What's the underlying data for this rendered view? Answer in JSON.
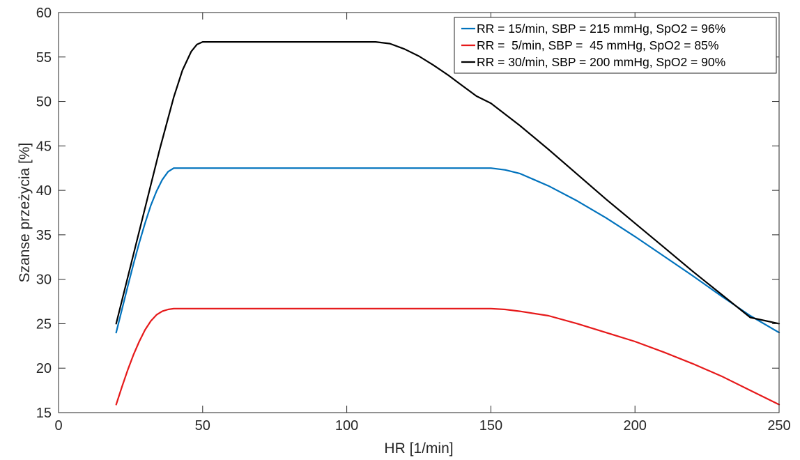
{
  "chart_data": {
    "type": "line",
    "title": "",
    "xlabel": "HR [1/min]",
    "ylabel": "Szanse przeżycia [%]",
    "xlim": [
      0,
      250
    ],
    "ylim": [
      15,
      60
    ],
    "xticks": [
      "0",
      "50",
      "100",
      "150",
      "200",
      "250"
    ],
    "yticks": [
      "15",
      "20",
      "25",
      "30",
      "35",
      "40",
      "45",
      "50",
      "55",
      "60"
    ],
    "grid": false,
    "legend_position": "top-right",
    "series": [
      {
        "name": "RR = 15/min, SBP = 215 mmHg, SpO2 = 96%",
        "color": "#0072BD",
        "x": [
          20,
          22,
          24,
          26,
          28,
          30,
          32,
          34,
          36,
          38,
          40,
          50,
          100,
          150,
          155,
          160,
          170,
          180,
          190,
          200,
          210,
          220,
          230,
          240,
          250
        ],
        "y": [
          24,
          26.6,
          29.2,
          31.7,
          34.1,
          36.3,
          38.3,
          39.9,
          41.2,
          42.1,
          42.5,
          42.5,
          42.5,
          42.5,
          42.3,
          41.9,
          40.5,
          38.8,
          36.9,
          34.8,
          32.6,
          30.4,
          28.1,
          25.9,
          24
        ]
      },
      {
        "name": "RR =  5/min, SBP =  45 mmHg, SpO2 = 85%",
        "color": "#E6191A",
        "x": [
          20,
          22,
          24,
          26,
          28,
          30,
          32,
          34,
          36,
          38,
          40,
          50,
          100,
          150,
          155,
          160,
          170,
          180,
          190,
          200,
          210,
          220,
          230,
          240,
          250
        ],
        "y": [
          15.9,
          17.9,
          19.8,
          21.5,
          23.0,
          24.3,
          25.3,
          26.0,
          26.4,
          26.6,
          26.7,
          26.7,
          26.7,
          26.7,
          26.6,
          26.4,
          25.9,
          25.0,
          24.0,
          23.0,
          21.8,
          20.5,
          19.1,
          17.5,
          15.9
        ]
      },
      {
        "name": "RR = 30/min, SBP = 200 mmHg, SpO2 = 90%",
        "color": "#000000",
        "x": [
          20,
          25,
          30,
          35,
          40,
          43,
          46,
          48,
          50,
          60,
          80,
          100,
          110,
          115,
          120,
          125,
          130,
          135,
          140,
          145,
          150,
          160,
          170,
          180,
          190,
          200,
          210,
          220,
          230,
          240,
          250
        ],
        "y": [
          25,
          31.5,
          38,
          44.5,
          50.5,
          53.5,
          55.6,
          56.4,
          56.7,
          56.7,
          56.7,
          56.7,
          56.7,
          56.5,
          55.9,
          55.1,
          54.1,
          53.0,
          51.8,
          50.6,
          49.8,
          47.3,
          44.6,
          41.8,
          39.0,
          36.3,
          33.6,
          30.9,
          28.3,
          25.7,
          25
        ]
      }
    ]
  }
}
